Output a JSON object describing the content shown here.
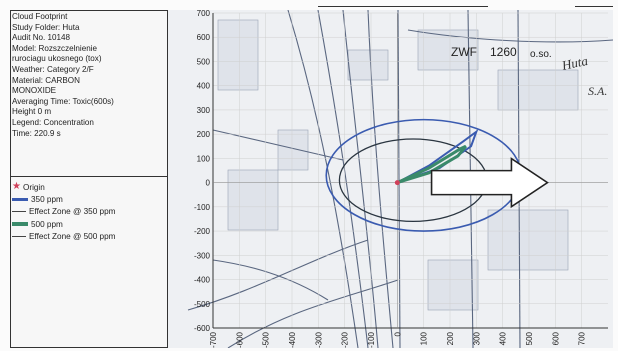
{
  "info_lines": [
    "Cloud Footprint",
    "Study Folder: Huta",
    "Audit No. 10148",
    "Model: Rozszczelnienie",
    "rurociagu ukosnego (tox)",
    "Weather: Category 2/F",
    "Material: CARBON",
    "MONOXIDE",
    "Averaging Time: Toxic(600s)",
    "Height 0 m",
    "Legend: Concentration",
    "Time: 220.9 s"
  ],
  "legend": [
    {
      "label": "Origin",
      "icon": "star-icon",
      "color": "#d0405a"
    },
    {
      "label": "350 ppm",
      "icon": "blue-thick-line",
      "color": "#3a5bb0"
    },
    {
      "label": "Effect Zone @ 350 ppm",
      "icon": "thin-line",
      "color": "#444444"
    },
    {
      "label": "500 ppm",
      "icon": "green-thick-line",
      "color": "#3a8a6a"
    },
    {
      "label": "Effect Zone @ 500 ppm",
      "icon": "thin-line",
      "color": "#444444"
    }
  ],
  "map_labels": {
    "zwf": "ZWF",
    "num": "1260",
    "extra": "o.so.",
    "huta": "Huta",
    "sa": "S.A."
  },
  "chart_data": {
    "type": "map-plot",
    "x_ticks": [
      -700,
      -600,
      -500,
      -400,
      -300,
      -200,
      -100,
      0,
      100,
      200,
      300,
      400,
      500,
      600,
      700
    ],
    "y_ticks": [
      700,
      600,
      500,
      400,
      300,
      200,
      100,
      0,
      -100,
      -200,
      -300,
      -400,
      -500,
      -600
    ],
    "xlim": [
      -700,
      800
    ],
    "ylim": [
      -600,
      700
    ],
    "origin": [
      0,
      0
    ],
    "effect_zone_350_center": [
      100,
      30
    ],
    "effect_zone_350_radii": [
      370,
      230
    ],
    "effect_zone_500_center": [
      60,
      10
    ],
    "effect_zone_500_radii": [
      280,
      170
    ],
    "plume_350": [
      [
        0,
        0
      ],
      [
        120,
        70
      ],
      [
        250,
        170
      ],
      [
        300,
        210
      ],
      [
        280,
        150
      ],
      [
        160,
        60
      ],
      [
        0,
        0
      ]
    ],
    "plume_500": [
      [
        0,
        0
      ],
      [
        120,
        60
      ],
      [
        240,
        140
      ],
      [
        260,
        150
      ],
      [
        230,
        110
      ],
      [
        120,
        40
      ],
      [
        0,
        0
      ]
    ],
    "arrow": {
      "from": [
        130,
        0
      ],
      "to": [
        570,
        0
      ]
    },
    "colors": {
      "effect": "#3a5bb0",
      "inner_effect": "#2a3540",
      "plume350": "#3a5bb0",
      "plume500": "#3a8a6a",
      "origin": "#d0405a",
      "grid": "#cfcfcf",
      "street": "#5a6780"
    }
  }
}
